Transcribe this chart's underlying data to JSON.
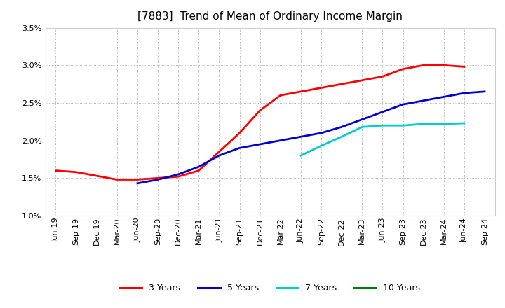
{
  "title": "[7883]  Trend of Mean of Ordinary Income Margin",
  "x_labels": [
    "Jun-19",
    "Sep-19",
    "Dec-19",
    "Mar-20",
    "Jun-20",
    "Sep-20",
    "Dec-20",
    "Mar-21",
    "Jun-21",
    "Sep-21",
    "Dec-21",
    "Mar-22",
    "Jun-22",
    "Sep-22",
    "Dec-22",
    "Mar-23",
    "Jun-23",
    "Sep-23",
    "Dec-23",
    "Mar-24",
    "Jun-24",
    "Sep-24"
  ],
  "ylim": [
    0.01,
    0.035
  ],
  "yticks": [
    0.01,
    0.015,
    0.02,
    0.025,
    0.03,
    0.035
  ],
  "series": {
    "3 Years": {
      "color": "#ff0000",
      "values": [
        0.016,
        0.0158,
        0.0153,
        0.0148,
        0.0148,
        0.015,
        0.0152,
        0.016,
        0.0185,
        0.021,
        0.024,
        0.026,
        0.0265,
        0.027,
        0.0275,
        0.028,
        0.0285,
        0.0295,
        0.03,
        0.03,
        0.0298,
        null
      ]
    },
    "5 Years": {
      "color": "#0000cd",
      "values": [
        null,
        null,
        null,
        null,
        0.0143,
        0.0148,
        0.0155,
        0.0165,
        0.018,
        0.019,
        0.0195,
        0.02,
        0.0205,
        0.021,
        0.0218,
        0.0228,
        0.0238,
        0.0248,
        0.0253,
        0.0258,
        0.0263,
        0.0265
      ]
    },
    "7 Years": {
      "color": "#00cccc",
      "values": [
        null,
        null,
        null,
        null,
        null,
        null,
        null,
        null,
        null,
        null,
        null,
        null,
        0.018,
        0.0193,
        0.0205,
        0.0218,
        0.022,
        0.022,
        0.0222,
        0.0222,
        0.0223,
        null
      ]
    },
    "10 Years": {
      "color": "#008000",
      "values": [
        null,
        null,
        null,
        null,
        null,
        null,
        null,
        null,
        null,
        null,
        null,
        null,
        null,
        null,
        null,
        null,
        null,
        null,
        null,
        null,
        null,
        null
      ]
    }
  },
  "legend_labels": [
    "3 Years",
    "5 Years",
    "7 Years",
    "10 Years"
  ],
  "legend_colors": [
    "#ff0000",
    "#0000cd",
    "#00cccc",
    "#008000"
  ],
  "background_color": "#ffffff",
  "grid_color": "#999999",
  "title_fontsize": 11,
  "tick_fontsize": 8,
  "legend_fontsize": 9
}
